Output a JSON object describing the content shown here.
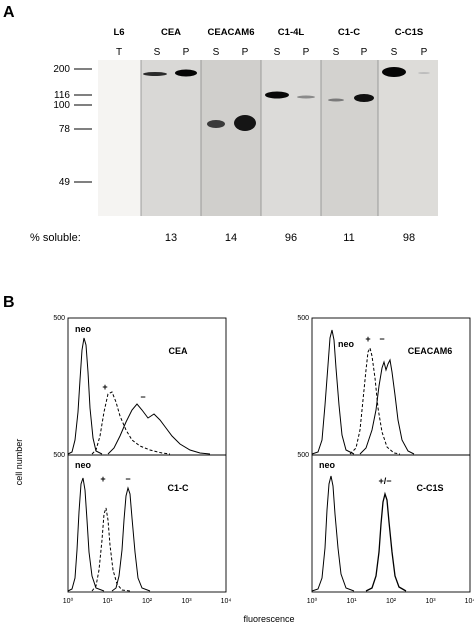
{
  "figure": {
    "panel_a": {
      "label": "A",
      "lanes": [
        {
          "title": "L6",
          "subs": [
            "T"
          ]
        },
        {
          "title": "CEA",
          "subs": [
            "S",
            "P"
          ]
        },
        {
          "title": "CEACAM6",
          "subs": [
            "S",
            "P"
          ]
        },
        {
          "title": "C1-4L",
          "subs": [
            "S",
            "P"
          ]
        },
        {
          "title": "C1-C",
          "subs": [
            "S",
            "P"
          ]
        },
        {
          "title": "C-C1S",
          "subs": [
            "S",
            "P"
          ]
        }
      ],
      "mw_markers": [
        "200",
        "116",
        "100",
        "78",
        "49"
      ],
      "soluble_label": "% soluble:",
      "soluble_values": [
        "13",
        "14",
        "96",
        "11",
        "98"
      ]
    },
    "panel_b": {
      "label": "B",
      "y_label": "cell number",
      "x_label": "fluorescence",
      "y_ticks": {
        "top": "500",
        "bottom": "500"
      },
      "x_ticks": [
        "10⁰",
        "10¹",
        "10²",
        "10³",
        "10⁴"
      ],
      "histograms": [
        {
          "title": "CEA",
          "annotations": [
            "neo",
            "+",
            "−"
          ]
        },
        {
          "title": "CEACAM6",
          "annotations": [
            "neo",
            "+",
            "−"
          ]
        },
        {
          "title": "C1-C",
          "annotations": [
            "neo",
            "+",
            "−"
          ]
        },
        {
          "title": "C-C1S",
          "annotations": [
            "neo",
            "+/−"
          ]
        }
      ]
    }
  }
}
